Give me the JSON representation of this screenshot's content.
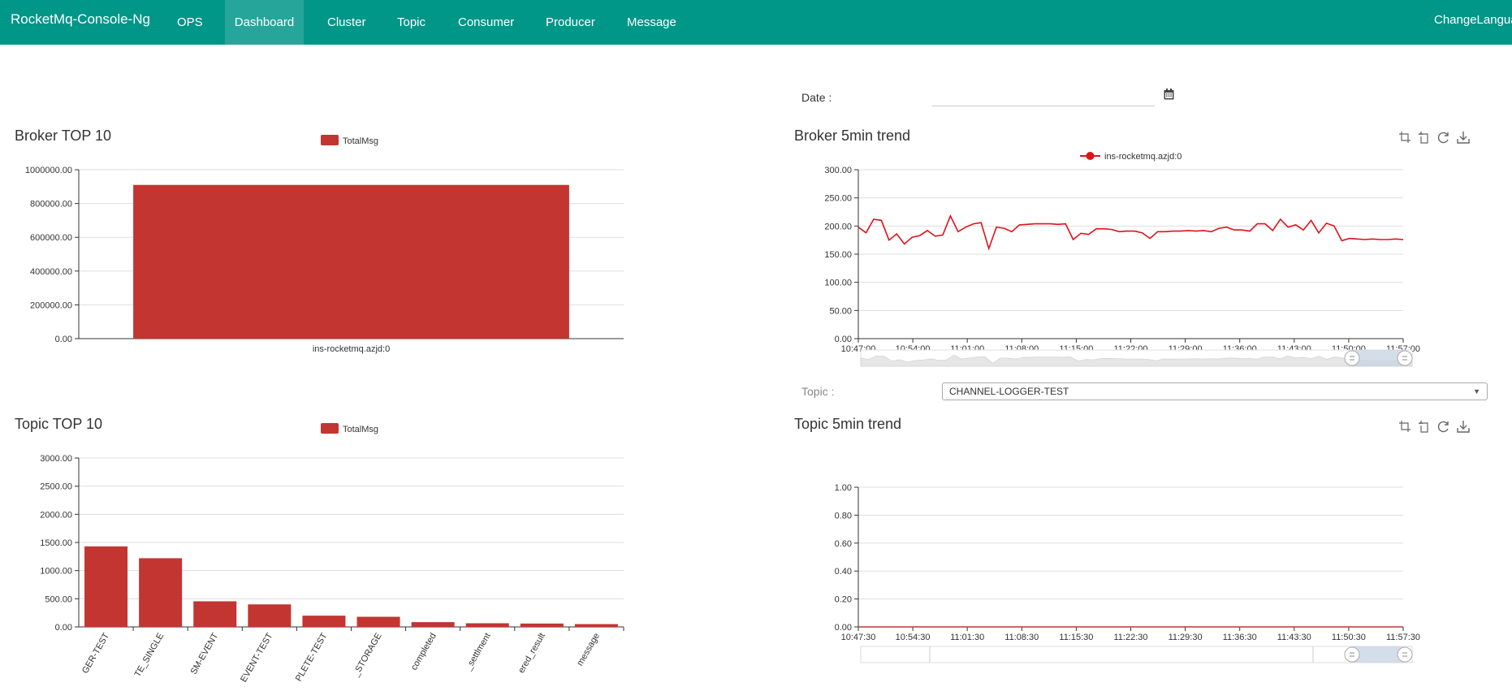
{
  "navbar": {
    "brand": "RocketMq-Console-Ng",
    "items": [
      {
        "label": "OPS",
        "active": false
      },
      {
        "label": "Dashboard",
        "active": true
      },
      {
        "label": "Cluster",
        "active": false
      },
      {
        "label": "Topic",
        "active": false
      },
      {
        "label": "Consumer",
        "active": false
      },
      {
        "label": "Producer",
        "active": false
      },
      {
        "label": "Message",
        "active": false
      }
    ],
    "lang": "ChangeLanguage",
    "color": "#009688",
    "active_color": "#26a69a"
  },
  "filters": {
    "date_label": "Date :",
    "date_value": "",
    "date_icon": "calendar-icon",
    "topic_label": "Topic :",
    "topic_value": "CHANNEL-LOGGER-TEST"
  },
  "panels": {
    "broker_top": {
      "title": "Broker TOP 10"
    },
    "broker_trend": {
      "title": "Broker 5min trend",
      "tools": [
        "zoom-icon",
        "zoom-reset-icon",
        "restore-icon",
        "download-icon"
      ]
    },
    "topic_top": {
      "title": "Topic TOP 10"
    },
    "topic_trend": {
      "title": "Topic 5min trend",
      "tools": [
        "zoom-icon",
        "zoom-reset-icon",
        "restore-icon",
        "download-icon"
      ]
    }
  },
  "chart_data": [
    {
      "id": "broker_top",
      "type": "bar",
      "legend": [
        "TotalMsg"
      ],
      "color": "#c23531",
      "categories": [
        "ins-rocketmq.azjd:0"
      ],
      "values": [
        910000
      ],
      "ylim": [
        0,
        1000000
      ],
      "yticks": [
        "0.00",
        "200000.00",
        "400000.00",
        "600000.00",
        "800000.00",
        "1000000.00"
      ]
    },
    {
      "id": "broker_trend",
      "type": "line",
      "legend": [
        "ins-rocketmq.azjd:0"
      ],
      "color": "#e0121a",
      "ylim": [
        0,
        300
      ],
      "yticks": [
        "0.00",
        "50.00",
        "100.00",
        "150.00",
        "200.00",
        "250.00",
        "300.00"
      ],
      "xticks": [
        "10:47:00",
        "10:54:00",
        "11:01:00",
        "11:08:00",
        "11:15:00",
        "11:22:00",
        "11:29:00",
        "11:36:00",
        "11:43:00",
        "11:50:00",
        "11:57:00"
      ],
      "x_range_min": [
        0,
        71
      ],
      "values": [
        198,
        188,
        212,
        210,
        175,
        186,
        168,
        180,
        183,
        192,
        182,
        184,
        218,
        190,
        198,
        204,
        206,
        160,
        198,
        196,
        190,
        202,
        203,
        204,
        204,
        204,
        203,
        204,
        176,
        187,
        185,
        195,
        195,
        194,
        190,
        191,
        191,
        188,
        178,
        190,
        190,
        191,
        191,
        192,
        191,
        192,
        190,
        196,
        198,
        193,
        193,
        191,
        204,
        204,
        192,
        212,
        198,
        202,
        193,
        210,
        188,
        205,
        200,
        174,
        178,
        177,
        176,
        177,
        176,
        176,
        177,
        176
      ]
    },
    {
      "id": "topic_top",
      "type": "bar",
      "legend": [
        "TotalMsg"
      ],
      "color": "#c23531",
      "categories": [
        "GER-TEST",
        "TE_SINGLE",
        "SM-EVENT",
        "EVENT-TEST",
        "PLETE-TEST",
        "_STORAGE",
        "completed",
        "_settlment",
        "ered_result",
        "message"
      ],
      "values": [
        1430,
        1220,
        455,
        400,
        200,
        180,
        85,
        65,
        60,
        50
      ],
      "ylim": [
        0,
        3000
      ],
      "yticks": [
        "0.00",
        "500.00",
        "1000.00",
        "1500.00",
        "2000.00",
        "2500.00",
        "3000.00"
      ]
    },
    {
      "id": "topic_trend",
      "type": "line",
      "legend": [],
      "color": "#c23531",
      "ylim": [
        0,
        1
      ],
      "yticks": [
        "0.00",
        "0.20",
        "0.40",
        "0.60",
        "0.80",
        "1.00"
      ],
      "xticks": [
        "10:47:30",
        "10:54:30",
        "11:01:30",
        "11:08:30",
        "11:15:30",
        "11:22:30",
        "11:29:30",
        "11:36:30",
        "11:43:30",
        "11:50:30",
        "11:57:30"
      ],
      "x_range_min": [
        0,
        70
      ],
      "values": [
        0,
        0
      ]
    }
  ]
}
